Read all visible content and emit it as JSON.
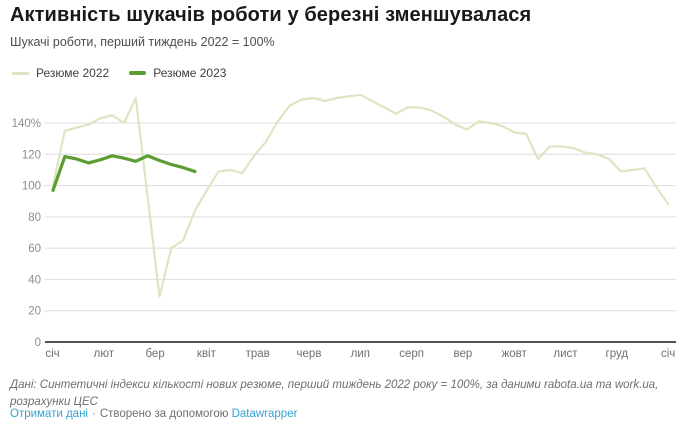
{
  "header": {
    "title": "Активність шукачів роботи у березні зменшувалася",
    "subtitle": "Шукачі роботи, перший тиждень 2022 = 100%"
  },
  "legend": [
    {
      "label": "Резюме 2022",
      "color": "#dbe7c2"
    },
    {
      "label": "Резюме 2023",
      "color": "#5a9e32"
    }
  ],
  "chart_data": {
    "type": "line",
    "title": "Активність шукачів роботи у березні зменшувалася",
    "subtitle": "Шукачі роботи, перший тиждень 2022 = 100%",
    "x_unit": "тиждень",
    "month_labels": [
      "січ",
      "лют",
      "бер",
      "квіт",
      "трав",
      "черв",
      "лип",
      "серп",
      "вер",
      "жовт",
      "лист",
      "груд",
      "січ"
    ],
    "ytick_values": [
      0,
      20,
      40,
      60,
      80,
      100,
      120,
      140
    ],
    "ytick_labels": [
      "0",
      "20",
      "40",
      "60",
      "80",
      "100",
      "120",
      "140%"
    ],
    "ylim": [
      0,
      160
    ],
    "grid": "horizontal",
    "legend_position": "top-left",
    "series": [
      {
        "name": "Резюме 2022",
        "color": "#dbe7c2",
        "width": 2.2,
        "values": [
          100,
          135,
          137,
          139,
          143,
          145,
          140,
          156,
          93,
          29,
          60,
          65,
          84,
          97,
          109,
          110,
          108,
          119,
          128,
          141,
          151,
          155,
          156,
          154,
          156,
          157,
          158,
          154,
          150,
          146,
          150,
          150,
          148,
          144,
          139,
          136,
          141,
          140,
          138,
          134,
          133,
          117,
          125,
          125,
          124,
          121,
          120,
          117,
          109,
          110,
          111,
          99,
          88
        ]
      },
      {
        "name": "Резюме 2023",
        "color": "#5a9e32",
        "width": 3.2,
        "values": [
          97,
          118.5,
          117,
          114.5,
          116.5,
          119,
          117.5,
          115.5,
          119,
          116,
          113.5,
          111.5,
          109
        ]
      }
    ]
  },
  "footer": {
    "note": "Дані: Синтетичні індекси кількості нових резюме, перший тиждень 2022 року = 100%, за даними rabota.ua та work.ua, розрахунки ЦЕС",
    "get_data": "Отримати дані",
    "separator": "·",
    "created_with": "Створено за допомогою",
    "datawrapper": "Datawrapper"
  },
  "colors": {
    "title": "#191919",
    "subtitle": "#4e4e4e",
    "link": "#35a3d0",
    "gridline": "#dcdcdc",
    "axis_line": "#1a1a1a",
    "ytick_text": "#8d8d8d",
    "xtick_text": "#6f6f6f"
  }
}
